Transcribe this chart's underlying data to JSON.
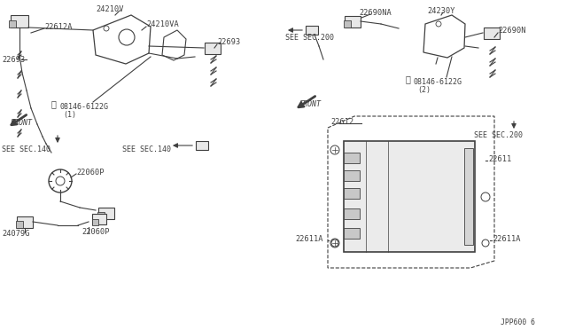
{
  "bg_color": "#ffffff",
  "line_color": "#404040",
  "text_color": "#404040",
  "fig_width": 6.4,
  "fig_height": 3.72,
  "dpi": 100,
  "part_number_bottom_right": "JPP600 6",
  "tl_parts": [
    "22612A",
    "24210V",
    "24210VA",
    "22693",
    "08146-6122G",
    "(1)",
    "SEE SEC.140",
    "FRONT"
  ],
  "tr_parts": [
    "22690NA",
    "24230Y",
    "22690N",
    "08146-6122G",
    "(2)",
    "SEE SEC.200",
    "FRONT"
  ],
  "bl_parts": [
    "22060P",
    "22060P",
    "24079G"
  ],
  "br_parts": [
    "22612",
    "22611",
    "22611A"
  ]
}
